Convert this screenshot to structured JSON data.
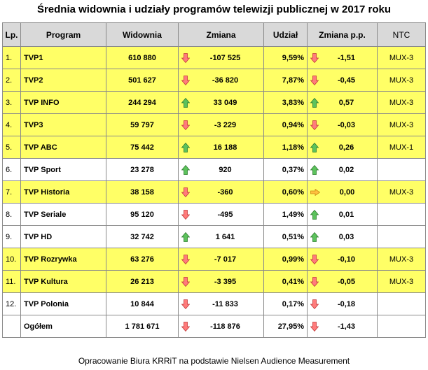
{
  "title": "Średnia widownia i udziały programów telewizji publicznej w 2017 roku",
  "headers": [
    "Lp.",
    "Program",
    "Widownia",
    "Zmiana",
    "Udział",
    "Zmiana p.p.",
    "NTC"
  ],
  "rows": [
    {
      "lp": "1.",
      "program": "TVP1",
      "widownia": "610 880",
      "zmiana": "-107 525",
      "zmiana_dir": "down",
      "udzial": "9,59%",
      "zmiana_pp": "-1,51",
      "zmiana_pp_dir": "down",
      "ntc": "MUX-3",
      "highlight": true
    },
    {
      "lp": "2.",
      "program": "TVP2",
      "widownia": "501 627",
      "zmiana": "-36 820",
      "zmiana_dir": "down",
      "udzial": "7,87%",
      "zmiana_pp": "-0,45",
      "zmiana_pp_dir": "down",
      "ntc": "MUX-3",
      "highlight": true
    },
    {
      "lp": "3.",
      "program": "TVP INFO",
      "widownia": "244 294",
      "zmiana": "33 049",
      "zmiana_dir": "up",
      "udzial": "3,83%",
      "zmiana_pp": "0,57",
      "zmiana_pp_dir": "up",
      "ntc": "MUX-3",
      "highlight": true
    },
    {
      "lp": "4.",
      "program": "TVP3",
      "widownia": "59 797",
      "zmiana": "-3 229",
      "zmiana_dir": "down",
      "udzial": "0,94%",
      "zmiana_pp": "-0,03",
      "zmiana_pp_dir": "down",
      "ntc": "MUX-3",
      "highlight": true
    },
    {
      "lp": "5.",
      "program": "TVP ABC",
      "widownia": "75 442",
      "zmiana": "16 188",
      "zmiana_dir": "up",
      "udzial": "1,18%",
      "zmiana_pp": "0,26",
      "zmiana_pp_dir": "up",
      "ntc": "MUX-1",
      "highlight": true
    },
    {
      "lp": "6.",
      "program": "TVP Sport",
      "widownia": "23 278",
      "zmiana": "920",
      "zmiana_dir": "up",
      "udzial": "0,37%",
      "zmiana_pp": "0,02",
      "zmiana_pp_dir": "up",
      "ntc": "",
      "highlight": false
    },
    {
      "lp": "7.",
      "program": "TVP Historia",
      "widownia": "38 158",
      "zmiana": "-360",
      "zmiana_dir": "down",
      "udzial": "0,60%",
      "zmiana_pp": "0,00",
      "zmiana_pp_dir": "right",
      "ntc": "MUX-3",
      "highlight": true
    },
    {
      "lp": "8.",
      "program": "TVP Seriale",
      "widownia": "95 120",
      "zmiana": "-495",
      "zmiana_dir": "down",
      "udzial": "1,49%",
      "zmiana_pp": "0,01",
      "zmiana_pp_dir": "up",
      "ntc": "",
      "highlight": false
    },
    {
      "lp": "9.",
      "program": "TVP HD",
      "widownia": "32 742",
      "zmiana": "1 641",
      "zmiana_dir": "up",
      "udzial": "0,51%",
      "zmiana_pp": "0,03",
      "zmiana_pp_dir": "up",
      "ntc": "",
      "highlight": false
    },
    {
      "lp": "10.",
      "program": "TVP Rozrywka",
      "widownia": "63 276",
      "zmiana": "-7 017",
      "zmiana_dir": "down",
      "udzial": "0,99%",
      "zmiana_pp": "-0,10",
      "zmiana_pp_dir": "down",
      "ntc": "MUX-3",
      "highlight": true
    },
    {
      "lp": "11.",
      "program": "TVP Kultura",
      "widownia": "26 213",
      "zmiana": "-3 395",
      "zmiana_dir": "down",
      "udzial": "0,41%",
      "zmiana_pp": "-0,05",
      "zmiana_pp_dir": "down",
      "ntc": "MUX-3",
      "highlight": true
    },
    {
      "lp": "12.",
      "program": "TVP Polonia",
      "widownia": "10 844",
      "zmiana": "-11 833",
      "zmiana_dir": "down",
      "udzial": "0,17%",
      "zmiana_pp": "-0,18",
      "zmiana_pp_dir": "down",
      "ntc": "",
      "highlight": false
    },
    {
      "lp": "",
      "program": "Ogółem",
      "widownia": "1 781 671",
      "zmiana": "-118 876",
      "zmiana_dir": "down",
      "udzial": "27,95%",
      "zmiana_pp": "-1,43",
      "zmiana_pp_dir": "down",
      "ntc": "",
      "highlight": false
    }
  ],
  "colors": {
    "highlight": "#ffff66",
    "header": "#d9d9d9",
    "arrow_down": "#ff7b7b",
    "arrow_up": "#5cc25c",
    "arrow_right": "#ffc040"
  },
  "icons": {
    "down": "arrow-down-icon",
    "up": "arrow-up-icon",
    "right": "arrow-right-icon"
  },
  "footer": "Opracowanie Biura KRRiT na podstawie Nielsen Audience Measurement"
}
